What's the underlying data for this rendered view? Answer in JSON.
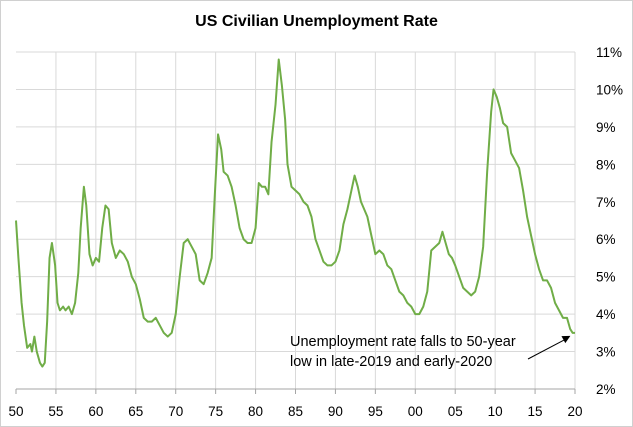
{
  "chart_data": {
    "type": "line",
    "title": "US Civilian Unemployment Rate",
    "xlabel": "",
    "ylabel": "",
    "xlim": [
      1950,
      2020
    ],
    "ylim": [
      2,
      11
    ],
    "x_ticks": [
      "50",
      "55",
      "60",
      "65",
      "70",
      "75",
      "80",
      "85",
      "90",
      "95",
      "00",
      "05",
      "10",
      "15",
      "20"
    ],
    "y_ticks": [
      "2%",
      "3%",
      "4%",
      "5%",
      "6%",
      "7%",
      "8%",
      "9%",
      "10%",
      "11%"
    ],
    "grid": true,
    "line_color": "#70ad47",
    "series": [
      {
        "values": [
          [
            1950.0,
            6.5
          ],
          [
            1950.3,
            5.5
          ],
          [
            1950.7,
            4.3
          ],
          [
            1951.0,
            3.7
          ],
          [
            1951.4,
            3.1
          ],
          [
            1951.8,
            3.2
          ],
          [
            1952.0,
            3.0
          ],
          [
            1952.3,
            3.4
          ],
          [
            1952.6,
            3.0
          ],
          [
            1953.0,
            2.7
          ],
          [
            1953.3,
            2.6
          ],
          [
            1953.6,
            2.7
          ],
          [
            1953.9,
            3.8
          ],
          [
            1954.2,
            5.5
          ],
          [
            1954.5,
            5.9
          ],
          [
            1954.9,
            5.3
          ],
          [
            1955.2,
            4.3
          ],
          [
            1955.5,
            4.1
          ],
          [
            1955.9,
            4.2
          ],
          [
            1956.2,
            4.1
          ],
          [
            1956.6,
            4.2
          ],
          [
            1957.0,
            4.0
          ],
          [
            1957.4,
            4.3
          ],
          [
            1957.8,
            5.1
          ],
          [
            1958.1,
            6.3
          ],
          [
            1958.5,
            7.4
          ],
          [
            1958.8,
            6.9
          ],
          [
            1959.2,
            5.6
          ],
          [
            1959.6,
            5.3
          ],
          [
            1960.0,
            5.5
          ],
          [
            1960.4,
            5.4
          ],
          [
            1960.8,
            6.3
          ],
          [
            1961.2,
            6.9
          ],
          [
            1961.6,
            6.8
          ],
          [
            1962.0,
            5.9
          ],
          [
            1962.5,
            5.5
          ],
          [
            1963.0,
            5.7
          ],
          [
            1963.5,
            5.6
          ],
          [
            1964.0,
            5.4
          ],
          [
            1964.5,
            5.0
          ],
          [
            1965.0,
            4.8
          ],
          [
            1965.5,
            4.4
          ],
          [
            1966.0,
            3.9
          ],
          [
            1966.5,
            3.8
          ],
          [
            1967.0,
            3.8
          ],
          [
            1967.5,
            3.9
          ],
          [
            1968.0,
            3.7
          ],
          [
            1968.5,
            3.5
          ],
          [
            1969.0,
            3.4
          ],
          [
            1969.5,
            3.5
          ],
          [
            1970.0,
            4.0
          ],
          [
            1970.5,
            5.0
          ],
          [
            1971.0,
            5.9
          ],
          [
            1971.5,
            6.0
          ],
          [
            1972.0,
            5.8
          ],
          [
            1972.5,
            5.6
          ],
          [
            1973.0,
            4.9
          ],
          [
            1973.5,
            4.8
          ],
          [
            1974.0,
            5.1
          ],
          [
            1974.5,
            5.5
          ],
          [
            1974.9,
            7.2
          ],
          [
            1975.3,
            8.8
          ],
          [
            1975.7,
            8.4
          ],
          [
            1976.0,
            7.8
          ],
          [
            1976.5,
            7.7
          ],
          [
            1977.0,
            7.4
          ],
          [
            1977.5,
            6.9
          ],
          [
            1978.0,
            6.3
          ],
          [
            1978.5,
            6.0
          ],
          [
            1979.0,
            5.9
          ],
          [
            1979.5,
            5.9
          ],
          [
            1980.0,
            6.3
          ],
          [
            1980.4,
            7.5
          ],
          [
            1980.8,
            7.4
          ],
          [
            1981.2,
            7.4
          ],
          [
            1981.6,
            7.2
          ],
          [
            1982.0,
            8.6
          ],
          [
            1982.5,
            9.6
          ],
          [
            1982.9,
            10.8
          ],
          [
            1983.3,
            10.1
          ],
          [
            1983.7,
            9.2
          ],
          [
            1984.0,
            8.0
          ],
          [
            1984.5,
            7.4
          ],
          [
            1985.0,
            7.3
          ],
          [
            1985.5,
            7.2
          ],
          [
            1986.0,
            7.0
          ],
          [
            1986.5,
            6.9
          ],
          [
            1987.0,
            6.6
          ],
          [
            1987.5,
            6.0
          ],
          [
            1988.0,
            5.7
          ],
          [
            1988.5,
            5.4
          ],
          [
            1989.0,
            5.3
          ],
          [
            1989.5,
            5.3
          ],
          [
            1990.0,
            5.4
          ],
          [
            1990.5,
            5.7
          ],
          [
            1991.0,
            6.4
          ],
          [
            1991.5,
            6.8
          ],
          [
            1992.0,
            7.3
          ],
          [
            1992.4,
            7.7
          ],
          [
            1992.8,
            7.4
          ],
          [
            1993.2,
            7.0
          ],
          [
            1993.6,
            6.8
          ],
          [
            1994.0,
            6.6
          ],
          [
            1994.5,
            6.1
          ],
          [
            1995.0,
            5.6
          ],
          [
            1995.5,
            5.7
          ],
          [
            1996.0,
            5.6
          ],
          [
            1996.5,
            5.3
          ],
          [
            1997.0,
            5.2
          ],
          [
            1997.5,
            4.9
          ],
          [
            1998.0,
            4.6
          ],
          [
            1998.5,
            4.5
          ],
          [
            1999.0,
            4.3
          ],
          [
            1999.5,
            4.2
          ],
          [
            2000.0,
            4.0
          ],
          [
            2000.5,
            4.0
          ],
          [
            2001.0,
            4.2
          ],
          [
            2001.5,
            4.6
          ],
          [
            2002.0,
            5.7
          ],
          [
            2002.5,
            5.8
          ],
          [
            2003.0,
            5.9
          ],
          [
            2003.4,
            6.2
          ],
          [
            2003.8,
            5.9
          ],
          [
            2004.2,
            5.6
          ],
          [
            2004.6,
            5.5
          ],
          [
            2005.0,
            5.3
          ],
          [
            2005.5,
            5.0
          ],
          [
            2006.0,
            4.7
          ],
          [
            2006.5,
            4.6
          ],
          [
            2007.0,
            4.5
          ],
          [
            2007.5,
            4.6
          ],
          [
            2008.0,
            5.0
          ],
          [
            2008.5,
            5.8
          ],
          [
            2009.0,
            7.8
          ],
          [
            2009.5,
            9.4
          ],
          [
            2009.8,
            10.0
          ],
          [
            2010.2,
            9.8
          ],
          [
            2010.6,
            9.5
          ],
          [
            2011.0,
            9.1
          ],
          [
            2011.5,
            9.0
          ],
          [
            2012.0,
            8.3
          ],
          [
            2012.5,
            8.1
          ],
          [
            2013.0,
            7.9
          ],
          [
            2013.5,
            7.3
          ],
          [
            2014.0,
            6.6
          ],
          [
            2014.5,
            6.1
          ],
          [
            2015.0,
            5.6
          ],
          [
            2015.5,
            5.2
          ],
          [
            2016.0,
            4.9
          ],
          [
            2016.5,
            4.9
          ],
          [
            2017.0,
            4.7
          ],
          [
            2017.5,
            4.3
          ],
          [
            2018.0,
            4.1
          ],
          [
            2018.5,
            3.9
          ],
          [
            2019.0,
            3.9
          ],
          [
            2019.4,
            3.6
          ],
          [
            2019.7,
            3.5
          ],
          [
            2020.0,
            3.5
          ]
        ]
      }
    ],
    "annotations": [
      {
        "lines": [
          "Unemployment rate falls to 50-year",
          "low in late-2019 and early-2020"
        ],
        "arrow_to": [
          2019.8,
          3.5
        ]
      }
    ]
  }
}
